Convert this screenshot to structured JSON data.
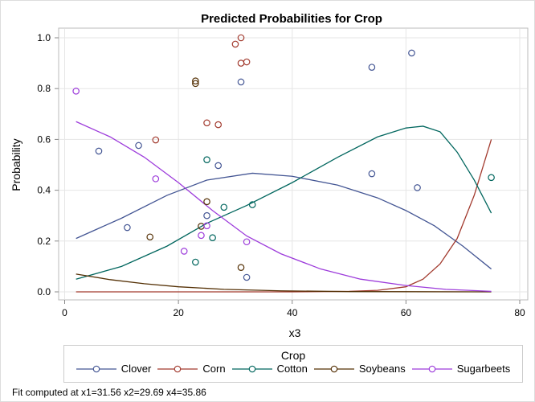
{
  "chart_data": {
    "type": "scatter",
    "title": "Predicted Probabilities for Crop",
    "xlabel": "x3",
    "ylabel": "Probability",
    "xlim": [
      0,
      80
    ],
    "ylim": [
      0,
      1.0
    ],
    "xticks": [
      "0",
      "20",
      "40",
      "60",
      "80"
    ],
    "yticks": [
      "0.0",
      "0.2",
      "0.4",
      "0.6",
      "0.8",
      "1.0"
    ],
    "grid": true,
    "legend": {
      "title": "Crop",
      "placement": "bottom"
    },
    "series": [
      {
        "name": "Clover",
        "color": "#445694",
        "points": [
          [
            6,
            0.554
          ],
          [
            11,
            0.253
          ],
          [
            13,
            0.576
          ],
          [
            25,
            0.3
          ],
          [
            27,
            0.497
          ],
          [
            31,
            0.826
          ],
          [
            32,
            0.057
          ],
          [
            54,
            0.884
          ],
          [
            61,
            0.94
          ],
          [
            54,
            0.465
          ],
          [
            62,
            0.41
          ]
        ],
        "curve": [
          [
            2,
            0.21
          ],
          [
            10,
            0.29
          ],
          [
            18,
            0.38
          ],
          [
            25,
            0.44
          ],
          [
            33,
            0.467
          ],
          [
            40,
            0.455
          ],
          [
            48,
            0.42
          ],
          [
            55,
            0.37
          ],
          [
            60,
            0.32
          ],
          [
            65,
            0.26
          ],
          [
            70,
            0.18
          ],
          [
            75,
            0.09
          ]
        ]
      },
      {
        "name": "Corn",
        "color": "#A23A2E",
        "points": [
          [
            16,
            0.598
          ],
          [
            25,
            0.665
          ],
          [
            27,
            0.658
          ],
          [
            30,
            0.975
          ],
          [
            31,
            1.0
          ],
          [
            31,
            0.9
          ],
          [
            32,
            0.905
          ]
        ],
        "curve": [
          [
            2,
            0.0
          ],
          [
            40,
            0.0
          ],
          [
            50,
            0.002
          ],
          [
            55,
            0.006
          ],
          [
            60,
            0.02
          ],
          [
            63,
            0.05
          ],
          [
            66,
            0.11
          ],
          [
            69,
            0.21
          ],
          [
            72,
            0.38
          ],
          [
            75,
            0.6
          ]
        ]
      },
      {
        "name": "Cotton",
        "color": "#01665E",
        "points": [
          [
            25,
            0.52
          ],
          [
            28,
            0.333
          ],
          [
            26,
            0.213
          ],
          [
            23,
            0.117
          ],
          [
            33,
            0.343
          ],
          [
            75,
            0.45
          ]
        ],
        "curve": [
          [
            2,
            0.05
          ],
          [
            10,
            0.1
          ],
          [
            18,
            0.18
          ],
          [
            25,
            0.27
          ],
          [
            32,
            0.34
          ],
          [
            40,
            0.43
          ],
          [
            48,
            0.53
          ],
          [
            55,
            0.61
          ],
          [
            60,
            0.645
          ],
          [
            63,
            0.652
          ],
          [
            66,
            0.63
          ],
          [
            69,
            0.55
          ],
          [
            72,
            0.44
          ],
          [
            75,
            0.31
          ]
        ]
      },
      {
        "name": "Soybeans",
        "color": "#543005",
        "points": [
          [
            23,
            0.83
          ],
          [
            23,
            0.82
          ],
          [
            25,
            0.355
          ],
          [
            24,
            0.258
          ],
          [
            15,
            0.216
          ],
          [
            31,
            0.096
          ]
        ],
        "curve": [
          [
            2,
            0.07
          ],
          [
            8,
            0.048
          ],
          [
            14,
            0.032
          ],
          [
            20,
            0.02
          ],
          [
            28,
            0.01
          ],
          [
            38,
            0.004
          ],
          [
            50,
            0.001
          ],
          [
            75,
            0.0
          ]
        ]
      },
      {
        "name": "Sugarbeets",
        "color": "#9D3CDB",
        "points": [
          [
            2,
            0.79
          ],
          [
            16,
            0.445
          ],
          [
            25,
            0.26
          ],
          [
            24,
            0.222
          ],
          [
            21,
            0.16
          ],
          [
            32,
            0.197
          ]
        ],
        "curve": [
          [
            2,
            0.67
          ],
          [
            8,
            0.61
          ],
          [
            14,
            0.53
          ],
          [
            20,
            0.43
          ],
          [
            26,
            0.32
          ],
          [
            32,
            0.22
          ],
          [
            38,
            0.15
          ],
          [
            45,
            0.09
          ],
          [
            52,
            0.05
          ],
          [
            60,
            0.025
          ],
          [
            67,
            0.01
          ],
          [
            75,
            0.002
          ]
        ]
      }
    ]
  },
  "footnote": "Fit computed at x1=31.56 x2=29.69 x4=35.86"
}
